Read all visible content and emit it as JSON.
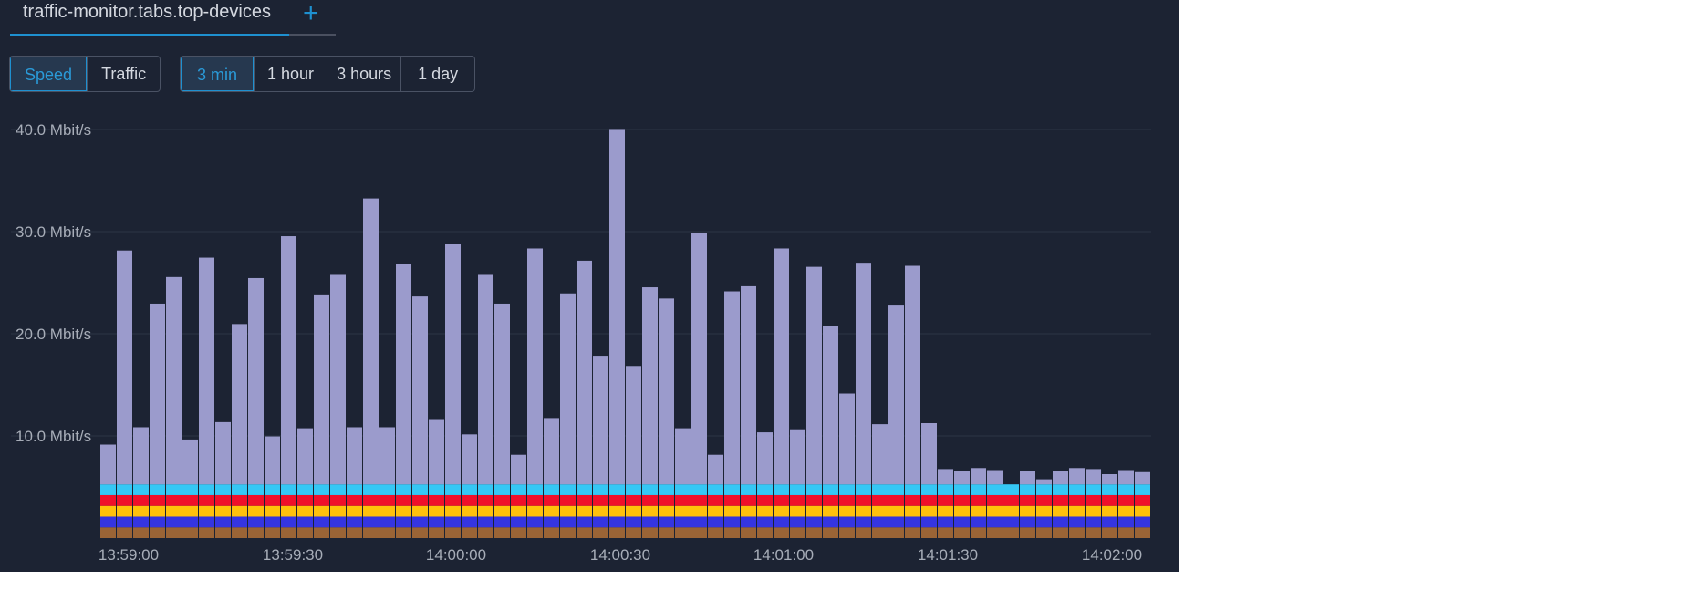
{
  "tabs": {
    "active_label": "traffic-monitor.tabs.top-devices",
    "add_icon": "plus-icon"
  },
  "mode_toggle": {
    "options": [
      "Speed",
      "Traffic"
    ],
    "selected": "Speed"
  },
  "range_toggle": {
    "options": [
      "3 min",
      "1 hour",
      "3 hours",
      "1 day"
    ],
    "selected": "3 min"
  },
  "colors": {
    "background": "#1c2333",
    "accent": "#1e90d0"
  },
  "chart_data": {
    "type": "bar",
    "stacked": true,
    "ylim": [
      0,
      40
    ],
    "y_ticks": [
      "10.0 Mbit/s",
      "20.0 Mbit/s",
      "30.0 Mbit/s",
      "40.0 Mbit/s"
    ],
    "y_tick_values": [
      10,
      20,
      30,
      40
    ],
    "x_ticks": [
      "13:59:00",
      "13:59:30",
      "14:00:00",
      "14:00:30",
      "14:01:00",
      "14:01:30",
      "14:02:00"
    ],
    "grid": true,
    "series": [
      {
        "color": "#9a6436",
        "values": [
          1.05,
          1.05,
          1.05,
          1.05,
          1.05,
          1.05,
          1.05,
          1.05,
          1.05,
          1.05,
          1.05,
          1.05,
          1.05,
          1.05,
          1.05,
          1.05,
          1.05,
          1.05,
          1.05,
          1.05,
          1.05,
          1.05,
          1.05,
          1.05,
          1.05,
          1.05,
          1.05,
          1.05,
          1.05,
          1.05,
          1.05,
          1.05,
          1.05,
          1.05,
          1.05,
          1.05,
          1.05,
          1.05,
          1.05,
          1.05,
          1.05,
          1.05,
          1.05,
          1.05,
          1.05,
          1.05,
          1.05,
          1.05,
          1.05,
          1.05,
          1.05,
          1.05,
          1.05,
          1.05,
          1.05,
          1.05,
          1.05,
          1.05,
          1.05,
          1.05,
          1.05,
          1.05,
          1.05,
          1.05
        ]
      },
      {
        "color": "#3535e0",
        "values": [
          1.05,
          1.05,
          1.05,
          1.05,
          1.05,
          1.05,
          1.05,
          1.05,
          1.05,
          1.05,
          1.05,
          1.05,
          1.05,
          1.05,
          1.05,
          1.05,
          1.05,
          1.05,
          1.05,
          1.05,
          1.05,
          1.05,
          1.05,
          1.05,
          1.05,
          1.05,
          1.05,
          1.05,
          1.05,
          1.05,
          1.05,
          1.05,
          1.05,
          1.05,
          1.05,
          1.05,
          1.05,
          1.05,
          1.05,
          1.05,
          1.05,
          1.05,
          1.05,
          1.05,
          1.05,
          1.05,
          1.05,
          1.05,
          1.05,
          1.05,
          1.05,
          1.05,
          1.05,
          1.05,
          1.05,
          1.05,
          1.05,
          1.05,
          1.05,
          1.05,
          1.05,
          1.05,
          1.05,
          1.05
        ]
      },
      {
        "color": "#ffc20a",
        "values": [
          1.05,
          1.05,
          1.05,
          1.05,
          1.05,
          1.05,
          1.05,
          1.05,
          1.05,
          1.05,
          1.05,
          1.05,
          1.05,
          1.05,
          1.05,
          1.05,
          1.05,
          1.05,
          1.05,
          1.05,
          1.05,
          1.05,
          1.05,
          1.05,
          1.05,
          1.05,
          1.05,
          1.05,
          1.05,
          1.05,
          1.05,
          1.05,
          1.05,
          1.05,
          1.05,
          1.05,
          1.05,
          1.05,
          1.05,
          1.05,
          1.05,
          1.05,
          1.05,
          1.05,
          1.05,
          1.05,
          1.05,
          1.05,
          1.05,
          1.05,
          1.05,
          1.05,
          1.05,
          1.05,
          1.05,
          1.05,
          1.05,
          1.05,
          1.05,
          1.05,
          1.05,
          1.05,
          1.05,
          1.05
        ]
      },
      {
        "color": "#f0102a",
        "values": [
          1.05,
          1.05,
          1.05,
          1.05,
          1.05,
          1.05,
          1.05,
          1.05,
          1.05,
          1.05,
          1.05,
          1.05,
          1.05,
          1.05,
          1.05,
          1.05,
          1.05,
          1.05,
          1.05,
          1.05,
          1.05,
          1.05,
          1.05,
          1.05,
          1.05,
          1.05,
          1.05,
          1.05,
          1.05,
          1.05,
          1.05,
          1.05,
          1.05,
          1.05,
          1.05,
          1.05,
          1.05,
          1.05,
          1.05,
          1.05,
          1.05,
          1.05,
          1.05,
          1.05,
          1.05,
          1.05,
          1.05,
          1.05,
          1.05,
          1.05,
          1.05,
          1.05,
          1.05,
          1.05,
          1.05,
          1.05,
          1.05,
          1.05,
          1.05,
          1.05,
          1.05,
          1.05,
          1.05,
          1.05
        ]
      },
      {
        "color": "#35c8f5",
        "values": [
          1.05,
          1.05,
          1.05,
          1.05,
          1.05,
          1.05,
          1.05,
          1.05,
          1.05,
          1.05,
          1.05,
          1.05,
          1.05,
          1.05,
          1.05,
          1.05,
          1.05,
          1.05,
          1.05,
          1.05,
          1.05,
          1.05,
          1.05,
          1.05,
          1.05,
          1.05,
          1.05,
          1.05,
          1.05,
          1.05,
          1.05,
          1.05,
          1.05,
          1.05,
          1.05,
          1.05,
          1.05,
          1.05,
          1.05,
          1.05,
          1.05,
          1.05,
          1.05,
          1.05,
          1.05,
          1.05,
          1.05,
          1.05,
          1.05,
          1.05,
          1.05,
          1.05,
          1.05,
          1.05,
          1.05,
          1.05,
          1.05,
          1.05,
          1.05,
          1.05,
          1.05,
          1.05,
          1.05,
          1.05
        ]
      },
      {
        "color": "#9b9bcc",
        "values": [
          3.9,
          22.9,
          5.6,
          17.7,
          20.3,
          4.4,
          22.2,
          6.1,
          15.7,
          20.2,
          4.7,
          24.3,
          5.5,
          18.6,
          20.6,
          5.6,
          28.0,
          5.6,
          21.6,
          18.4,
          6.4,
          23.5,
          4.9,
          20.6,
          17.7,
          2.9,
          23.1,
          6.5,
          18.7,
          21.9,
          12.6,
          34.8,
          11.6,
          19.3,
          18.2,
          5.5,
          24.6,
          2.9,
          18.9,
          19.4,
          5.1,
          23.1,
          5.4,
          21.3,
          15.5,
          8.9,
          21.7,
          5.9,
          17.6,
          21.4,
          6.0,
          1.5,
          1.3,
          1.6,
          1.4,
          0,
          1.3,
          0.5,
          1.3,
          1.6,
          1.5,
          1.0,
          1.4,
          1.2
        ]
      }
    ]
  }
}
